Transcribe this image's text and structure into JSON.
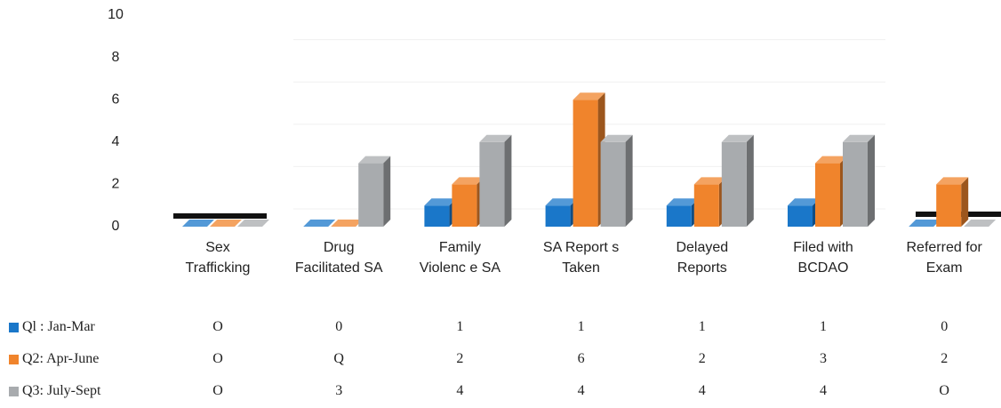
{
  "chart_data": {
    "type": "bar3d",
    "categories": [
      "Sex Trafficking",
      "Drug Facilitated SA",
      "Family Violenc e SA",
      "SA Report s Taken",
      "Delayed Reports",
      "Filed with BCDAO",
      "Referred for Exam"
    ],
    "series": [
      {
        "name": "Ql : Jan-Mar",
        "color": "#1a77c9",
        "values": [
          0,
          0,
          1,
          1,
          1,
          1,
          0
        ],
        "value_labels": [
          "O",
          "0",
          "1",
          "1",
          "1",
          "1",
          "0"
        ]
      },
      {
        "name": "Q2: Apr-June",
        "color": "#f0842c",
        "values": [
          0,
          0,
          2,
          6,
          2,
          3,
          2
        ],
        "value_labels": [
          "O",
          "Q",
          "2",
          "6",
          "2",
          "3",
          "2"
        ]
      },
      {
        "name": "Q3: July-Sept",
        "color": "#a8abae",
        "values": [
          0,
          3,
          4,
          4,
          4,
          4,
          0
        ],
        "value_labels": [
          "O",
          "3",
          "4",
          "4",
          "4",
          "4",
          "O"
        ]
      }
    ],
    "ylim": [
      0,
      10
    ],
    "yticks": [
      0,
      2,
      4,
      6,
      8,
      10
    ],
    "grid": true
  }
}
